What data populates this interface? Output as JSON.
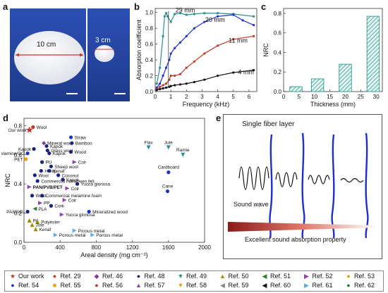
{
  "labels": {
    "a": "a",
    "b": "b",
    "c": "c",
    "d": "d",
    "e": "e"
  },
  "panel_a": {
    "big_sample_label": "10 cm",
    "small_sample_label": "3 cm"
  },
  "chart_data": [
    {
      "type": "line",
      "panel": "b",
      "xlabel": "Frequency (kHz)",
      "ylabel": "Absorption coefficient",
      "xlim": [
        0,
        6.5
      ],
      "ylim": [
        0,
        1.05
      ],
      "xticks": [
        0,
        1,
        2,
        3,
        4,
        5,
        6
      ],
      "yticks": [
        0.0,
        0.2,
        0.4,
        0.6,
        0.8,
        1.0
      ],
      "series": [
        {
          "name": "29 mm",
          "color": "#2a8f8f",
          "x": [
            0.1,
            0.3,
            0.5,
            0.6,
            0.7,
            0.8,
            1.0,
            1.25,
            1.6,
            2.0,
            2.5,
            3.15,
            4.0,
            5.0,
            6.3
          ],
          "y": [
            0.1,
            0.3,
            0.7,
            0.95,
            0.99,
            0.95,
            0.88,
            0.98,
            0.99,
            0.97,
            0.98,
            0.99,
            0.99,
            0.98,
            0.95
          ]
        },
        {
          "name": "20 mm",
          "color": "#1f2fc9",
          "x": [
            0.1,
            0.3,
            0.5,
            0.7,
            0.9,
            1.0,
            1.25,
            1.6,
            2.0,
            2.5,
            3.15,
            4.0,
            5.0,
            5.6,
            6.3
          ],
          "y": [
            0.05,
            0.1,
            0.2,
            0.3,
            0.4,
            0.48,
            0.55,
            0.62,
            0.7,
            0.8,
            0.88,
            0.95,
            0.97,
            0.9,
            0.84
          ]
        },
        {
          "name": "11 mm",
          "color": "#c0392b",
          "x": [
            0.1,
            0.3,
            0.5,
            0.7,
            0.9,
            1.0,
            1.25,
            1.6,
            2.0,
            2.5,
            3.15,
            4.0,
            5.0,
            6.3
          ],
          "y": [
            0.03,
            0.06,
            0.08,
            0.1,
            0.15,
            0.2,
            0.2,
            0.22,
            0.3,
            0.38,
            0.48,
            0.58,
            0.66,
            0.7
          ]
        },
        {
          "name": "4 mm",
          "color": "#111111",
          "x": [
            0.1,
            0.3,
            0.5,
            0.7,
            0.9,
            1.0,
            1.25,
            1.6,
            2.0,
            2.5,
            3.15,
            4.0,
            5.0,
            6.3
          ],
          "y": [
            0.02,
            0.03,
            0.04,
            0.05,
            0.06,
            0.07,
            0.08,
            0.09,
            0.1,
            0.12,
            0.15,
            0.2,
            0.24,
            0.27
          ]
        }
      ]
    },
    {
      "type": "bar",
      "panel": "c",
      "xlabel": "Thickness (mm)",
      "ylabel": "NRC",
      "xlim": [
        0,
        32
      ],
      "ylim": [
        0,
        0.85
      ],
      "xticks": [
        0,
        5,
        10,
        15,
        20,
        25,
        30
      ],
      "yticks": [
        0.0,
        0.2,
        0.4,
        0.6,
        0.8
      ],
      "x": [
        4,
        11,
        20,
        29
      ],
      "values": [
        0.05,
        0.13,
        0.28,
        0.77
      ],
      "color": "#2a9d8f"
    },
    {
      "type": "scatter",
      "panel": "d",
      "xlabel": "Areal density (mg cm⁻²)",
      "ylabel": "NRC",
      "xlim": [
        0,
        2000
      ],
      "ylim": [
        0,
        0.85
      ],
      "xticks": [
        0,
        400,
        800,
        1200,
        1600,
        2000
      ],
      "yticks": [
        0.0,
        0.2,
        0.4,
        0.6,
        0.8
      ],
      "points": [
        {
          "label": "Our work",
          "x": 60,
          "y": 0.77,
          "marker": "star",
          "color": "#c0392b"
        },
        {
          "label": "Wool",
          "x": 100,
          "y": 0.79,
          "marker": "circle",
          "color": "#c0392b"
        },
        {
          "label": "Mineral wool",
          "x": 220,
          "y": 0.68,
          "marker": "diamond",
          "color": "#7d3c98"
        },
        {
          "label": "Kapok",
          "x": 250,
          "y": 0.66,
          "marker": "circle",
          "color": "#1a237e"
        },
        {
          "label": "Straw",
          "x": 520,
          "y": 0.72,
          "marker": "circle",
          "color": "#1f2fc9"
        },
        {
          "label": "Bamboo",
          "x": 530,
          "y": 0.68,
          "marker": "circle",
          "color": "#1a237e"
        },
        {
          "label": "Kapok",
          "x": 110,
          "y": 0.64,
          "marker": "circle",
          "color": "#1a237e"
        },
        {
          "label": "Glass wool",
          "x": 260,
          "y": 0.63,
          "marker": "circle",
          "color": "#1a237e"
        },
        {
          "label": "Wood",
          "x": 520,
          "y": 0.62,
          "marker": "circle",
          "color": "#1a237e"
        },
        {
          "label": "Melamine/GO",
          "x": 40,
          "y": 0.61,
          "marker": "circle",
          "color": "#1f2fc9"
        },
        {
          "label": "Kapok",
          "x": 280,
          "y": 0.61,
          "marker": "circle",
          "color": "#1a237e"
        },
        {
          "label": "PET",
          "x": 20,
          "y": 0.57,
          "marker": "circle",
          "color": "#f39c12"
        },
        {
          "label": "PU",
          "x": 200,
          "y": 0.55,
          "marker": "circle",
          "color": "#1a237e"
        },
        {
          "label": "Sheep wool",
          "x": 300,
          "y": 0.52,
          "marker": "circle",
          "color": "#1a237e"
        },
        {
          "label": "Hemp",
          "x": 190,
          "y": 0.49,
          "marker": "circle",
          "color": "#1a237e"
        },
        {
          "label": "Kenaf",
          "x": 280,
          "y": 0.49,
          "marker": "circle",
          "color": "#1a237e"
        },
        {
          "label": "Wool",
          "x": 120,
          "y": 0.46,
          "marker": "circle",
          "color": "#1a237e"
        },
        {
          "label": "Coconut",
          "x": 380,
          "y": 0.46,
          "marker": "circle",
          "color": "#1a237e"
        },
        {
          "label": "Coir",
          "x": 560,
          "y": 0.55,
          "marker": "triangle-right",
          "color": "#8e44ad"
        },
        {
          "label": "Commercial nonwoven felt",
          "x": 150,
          "y": 0.42,
          "marker": "circle",
          "color": "#1a237e"
        },
        {
          "label": "Kapok",
          "x": 430,
          "y": 0.43,
          "marker": "circle",
          "color": "#1a237e"
        },
        {
          "label": "Yucca gloriosa",
          "x": 590,
          "y": 0.4,
          "marker": "circle",
          "color": "#1a237e"
        },
        {
          "label": "Coir",
          "x": 480,
          "y": 0.37,
          "marker": "triangle-right",
          "color": "#8e44ad"
        },
        {
          "label": "Flax",
          "x": 1380,
          "y": 0.65,
          "marker": "triangle-down",
          "color": "#2a8f8f"
        },
        {
          "label": "Jute",
          "x": 1600,
          "y": 0.65,
          "marker": "triangle-down",
          "color": "#2a8f8f"
        },
        {
          "label": "Ramie",
          "x": 1760,
          "y": 0.6,
          "marker": "triangle-down",
          "color": "#2a8f8f"
        },
        {
          "label": "Cardboard",
          "x": 1600,
          "y": 0.48,
          "marker": "circle",
          "color": "#1f2fc9"
        },
        {
          "label": "Cane",
          "x": 1590,
          "y": 0.35,
          "marker": "circle",
          "color": "#1f2fc9"
        },
        {
          "label": "PAN/PVB/PET",
          "x": 60,
          "y": 0.38,
          "marker": "triangle-right",
          "color": "#8e44ad"
        },
        {
          "label": "Wool",
          "x": 90,
          "y": 0.32,
          "marker": "circle",
          "color": "#1a237e"
        },
        {
          "label": "Commercial melamine foam",
          "x": 200,
          "y": 0.32,
          "marker": "circle",
          "color": "#1a237e"
        },
        {
          "label": "Coir",
          "x": 450,
          "y": 0.29,
          "marker": "triangle-right",
          "color": "#8e44ad"
        },
        {
          "label": "PP",
          "x": 180,
          "y": 0.27,
          "marker": "triangle-right",
          "color": "#8e44ad"
        },
        {
          "label": "Cork",
          "x": 300,
          "y": 0.25,
          "marker": "circle",
          "color": "#1a237e"
        },
        {
          "label": "PLA",
          "x": 120,
          "y": 0.23,
          "marker": "triangle-left",
          "color": "#2e7d32"
        },
        {
          "label": "Mineralized wood",
          "x": 720,
          "y": 0.21,
          "marker": "circle",
          "color": "#1f2fc9"
        },
        {
          "label": "PANSiO₂",
          "x": 40,
          "y": 0.21,
          "marker": "circle",
          "color": "#1a237e"
        },
        {
          "label": "Yucca gloriosa",
          "x": 420,
          "y": 0.19,
          "marker": "triangle-right",
          "color": "#8e44ad"
        },
        {
          "label": "PA",
          "x": 60,
          "y": 0.15,
          "marker": "triangle-up",
          "color": "#9a8c00"
        },
        {
          "label": "Polyester",
          "x": 150,
          "y": 0.14,
          "marker": "triangle-up",
          "color": "#9a8c00"
        },
        {
          "label": "Jute",
          "x": 90,
          "y": 0.12,
          "marker": "triangle-up",
          "color": "#9a8c00"
        },
        {
          "label": "Kenaf",
          "x": 130,
          "y": 0.09,
          "marker": "triangle-up",
          "color": "#9a8c00"
        },
        {
          "label": "Porous metal",
          "x": 560,
          "y": 0.08,
          "marker": "triangle-right",
          "color": "#5dade2"
        },
        {
          "label": "Porous metal",
          "x": 350,
          "y": 0.05,
          "marker": "triangle-right",
          "color": "#5dade2"
        },
        {
          "label": "Porous metal",
          "x": 760,
          "y": 0.05,
          "marker": "triangle-right",
          "color": "#5dade2"
        }
      ]
    }
  ],
  "panel_e": {
    "title": "Single fiber layer",
    "wave_label": "Sound wave",
    "bottom_label": "Excellent sound absorption property"
  },
  "legend": {
    "items": [
      {
        "label": "Our work",
        "marker": "★",
        "color": "#c0392b"
      },
      {
        "label": "Ref. 29",
        "marker": "●",
        "color": "#c0392b"
      },
      {
        "label": "Ref. 46",
        "marker": "◆",
        "color": "#7d3c98"
      },
      {
        "label": "Ref. 48",
        "marker": "●",
        "color": "#1a237e"
      },
      {
        "label": "Ref. 49",
        "marker": "▼",
        "color": "#2a8f8f"
      },
      {
        "label": "Ref. 50",
        "marker": "▲",
        "color": "#9a8c00"
      },
      {
        "label": "Ref. 51",
        "marker": "◀",
        "color": "#2e7d32"
      },
      {
        "label": "Ref. 52",
        "marker": "▶",
        "color": "#8e44ad"
      },
      {
        "label": "Ref. 53",
        "marker": "●",
        "color": "#d4a017"
      },
      {
        "label": "Ref. 54",
        "marker": "●",
        "color": "#1f2fc9"
      },
      {
        "label": "Ref. 55",
        "marker": "■",
        "color": "#f39c12"
      },
      {
        "label": "Ref. 56",
        "marker": "●",
        "color": "#c0392b"
      },
      {
        "label": "Ref. 57",
        "marker": "▲",
        "color": "#8e44ad"
      },
      {
        "label": "Ref. 58",
        "marker": "▼",
        "color": "#f39c12"
      },
      {
        "label": "Ref. 59",
        "marker": "◀",
        "color": "#888888"
      },
      {
        "label": "Ref. 60",
        "marker": "◀",
        "color": "#111111"
      },
      {
        "label": "Ref. 61",
        "marker": "▶",
        "color": "#5dade2"
      },
      {
        "label": "Ref. 62",
        "marker": "●",
        "color": "#2e7d32"
      }
    ]
  }
}
